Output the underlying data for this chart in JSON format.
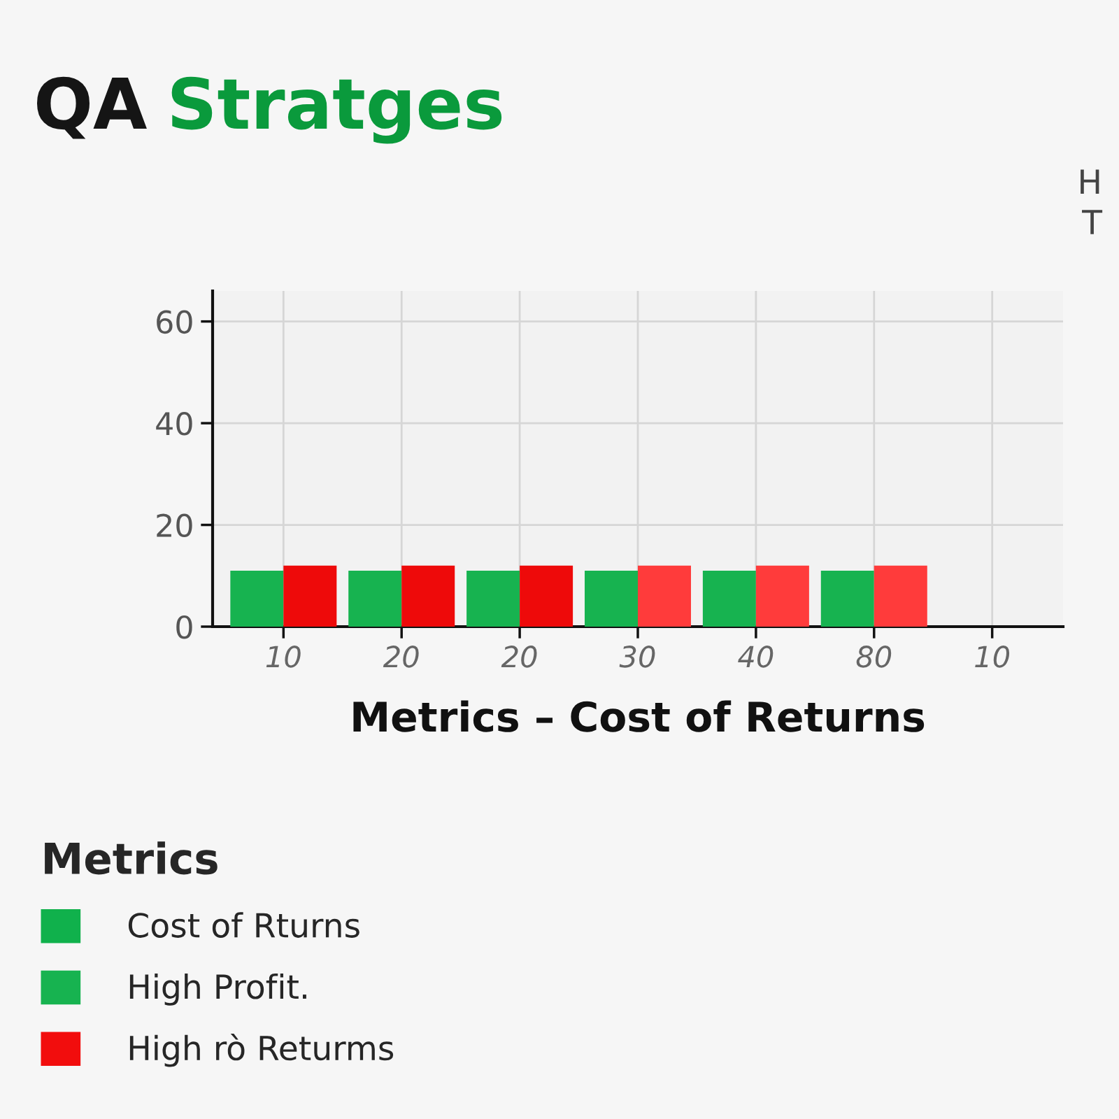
{
  "chart_data": {
    "type": "bar",
    "title": "QA Stratges",
    "xlabel": "Metrics – Cost of Returns",
    "legend_title": "Metrics",
    "categories": [
      "10",
      "20",
      "20",
      "30",
      "40",
      "80",
      "10"
    ],
    "series": [
      {
        "name": "Cost of Rturns",
        "color": "#10b14c",
        "values": [
          null,
          null,
          null,
          null,
          null,
          null,
          null
        ]
      },
      {
        "name": "High Profit.",
        "color": "#17b350",
        "values": [
          11,
          11,
          11,
          11,
          11,
          11,
          null
        ]
      },
      {
        "name": "High rò Returms",
        "color": "#f20d0d",
        "colors": [
          "#ee0a0a",
          "#ee0a0a",
          "#ee0a0a",
          "#ff3b3b",
          "#ff3b3b",
          "#ff3b3b",
          "#ff3b3b"
        ],
        "values": [
          12,
          12,
          12,
          12,
          12,
          12,
          null
        ]
      }
    ],
    "ylim": [
      0,
      66
    ],
    "yticks": [
      0,
      20,
      40,
      60
    ],
    "grid": true,
    "legend": "bottom left",
    "annotations": [
      "H",
      "T"
    ]
  }
}
